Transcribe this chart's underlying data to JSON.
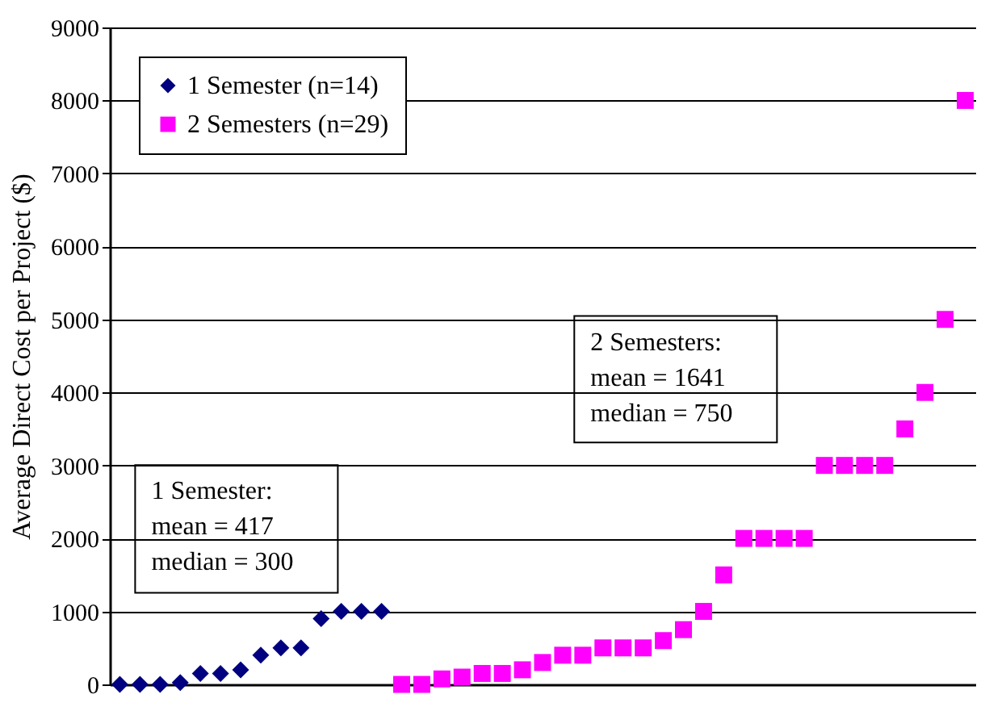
{
  "chart_data": {
    "type": "scatter",
    "ylabel": "Average Direct Cost per Project ($)",
    "categories": [
      null,
      null,
      null,
      null,
      null,
      null,
      null,
      null,
      null,
      null,
      null,
      null,
      null,
      null,
      null,
      null,
      null,
      null,
      null,
      null,
      null,
      null,
      null,
      null,
      null,
      null,
      null,
      null,
      null,
      null,
      null,
      null,
      null,
      null,
      null,
      null,
      null,
      null,
      null,
      null,
      null,
      null,
      null
    ],
    "series": [
      {
        "name": "1 Semester (n=14)",
        "color": "#000080",
        "marker": "diamond",
        "values": [
          0,
          0,
          0,
          25,
          150,
          150,
          200,
          400,
          500,
          500,
          900,
          1000,
          1000,
          1000,
          null,
          null,
          null,
          null,
          null,
          null,
          null,
          null,
          null,
          null,
          null,
          null,
          null,
          null,
          null,
          null,
          null,
          null,
          null,
          null,
          null,
          null,
          null,
          null,
          null,
          null,
          null,
          null,
          null
        ]
      },
      {
        "name": "2 Semesters (n=29)",
        "color": "#ff00ff",
        "marker": "square",
        "values": [
          null,
          null,
          null,
          null,
          null,
          null,
          null,
          null,
          null,
          null,
          null,
          null,
          null,
          null,
          0,
          0,
          75,
          100,
          150,
          150,
          200,
          300,
          400,
          400,
          500,
          500,
          500,
          600,
          750,
          1000,
          1500,
          2000,
          2000,
          2000,
          2000,
          3000,
          3000,
          3000,
          3000,
          3500,
          4000,
          5000,
          8000
        ]
      }
    ],
    "ylim": [
      0,
      9000
    ],
    "yticks": [
      0,
      1000,
      2000,
      3000,
      4000,
      5000,
      6000,
      7000,
      8000,
      9000
    ],
    "grid": "y",
    "legend": "top left",
    "tick_labels": "y",
    "annotations": [
      "1 Semester:\n  mean = 417\n  median = 300",
      "2 Semesters:\n  mean = 1641\n  median = 750"
    ]
  }
}
